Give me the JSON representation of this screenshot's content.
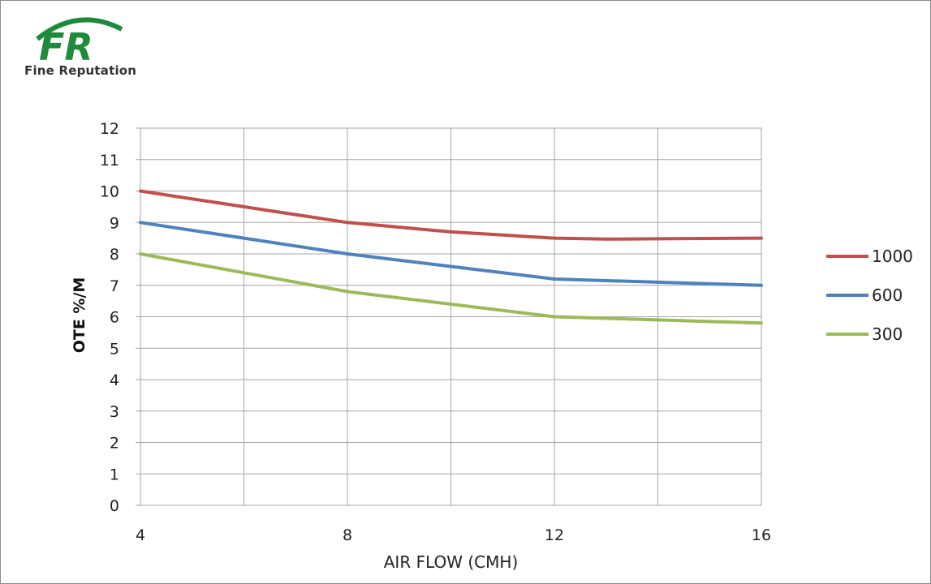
{
  "logo": {
    "mark_text": "FR",
    "company": "Fine Reputation",
    "mark_color": "#1f8a3c"
  },
  "chart_data": {
    "type": "line",
    "xlabel": "AIR FLOW (CMH)",
    "ylabel": "OTE  %/M",
    "xlim": [
      4,
      16
    ],
    "ylim": [
      0,
      12
    ],
    "x_ticks": [
      4,
      8,
      12,
      16
    ],
    "y_ticks": [
      0,
      1,
      2,
      3,
      4,
      5,
      6,
      7,
      8,
      9,
      10,
      11,
      12
    ],
    "grid": true,
    "legend_position": "right",
    "series": [
      {
        "name": "1000",
        "color": "#c0504d",
        "points": [
          [
            4,
            10
          ],
          [
            6,
            9.5
          ],
          [
            8,
            9.0
          ],
          [
            10,
            8.7
          ],
          [
            12,
            8.5
          ],
          [
            13,
            8.47
          ],
          [
            14,
            8.48
          ],
          [
            16,
            8.5
          ]
        ]
      },
      {
        "name": "600",
        "color": "#4f81bd",
        "points": [
          [
            4,
            9
          ],
          [
            6,
            8.5
          ],
          [
            8,
            8.0
          ],
          [
            10,
            7.6
          ],
          [
            12,
            7.2
          ],
          [
            14,
            7.1
          ],
          [
            16,
            7.0
          ]
        ]
      },
      {
        "name": "300",
        "color": "#9bbb59",
        "points": [
          [
            4,
            8
          ],
          [
            6,
            7.4
          ],
          [
            8,
            6.8
          ],
          [
            10,
            6.4
          ],
          [
            12,
            6.0
          ],
          [
            14,
            5.9
          ],
          [
            16,
            5.8
          ]
        ]
      }
    ]
  }
}
